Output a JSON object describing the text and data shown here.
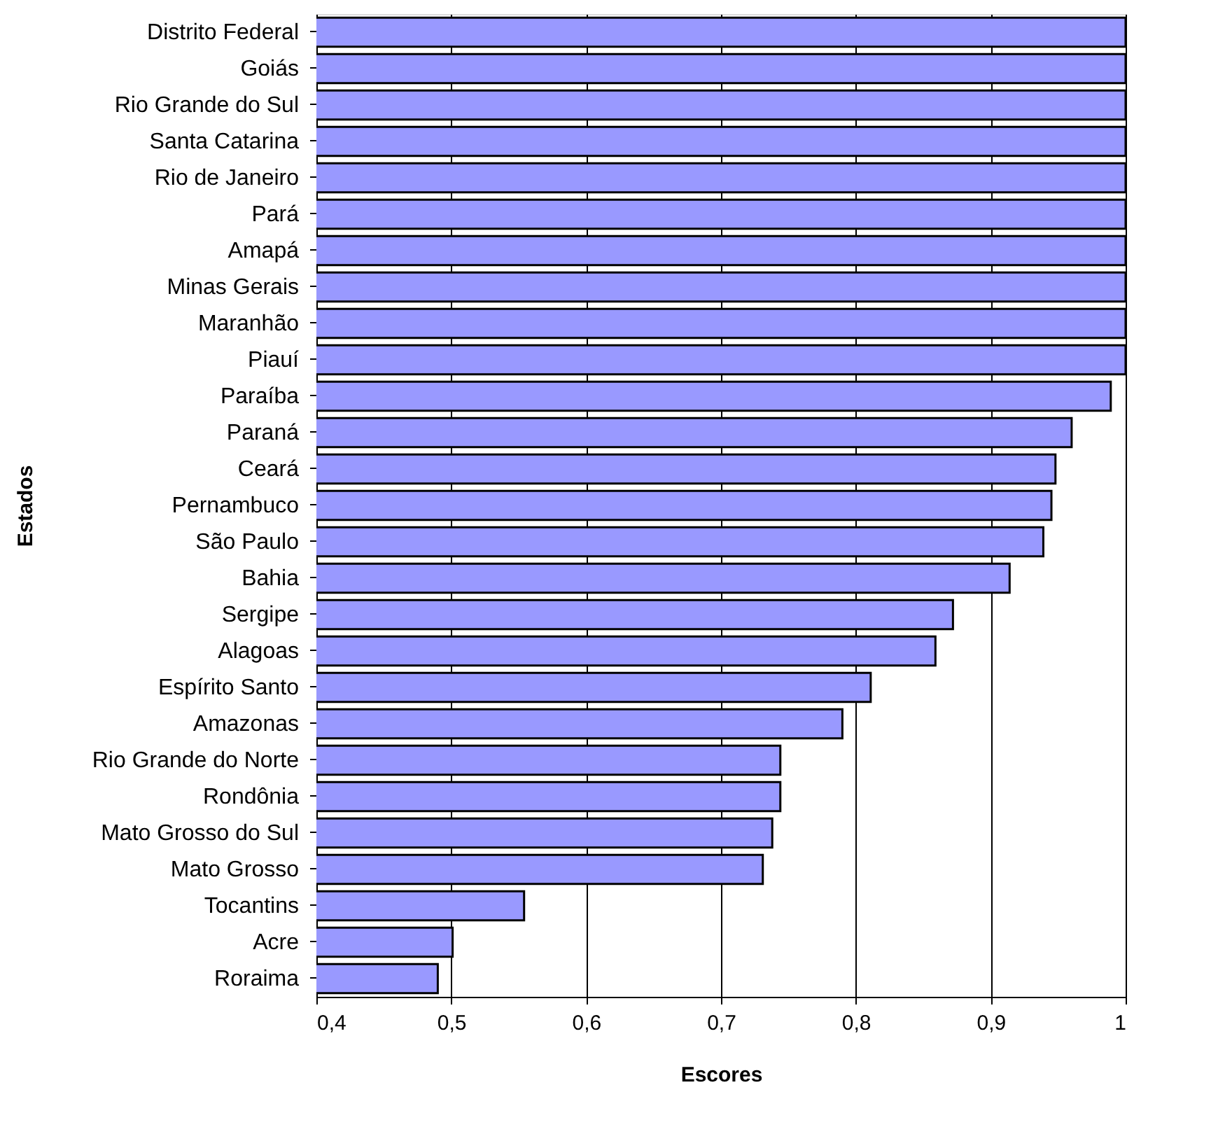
{
  "chart_data": {
    "type": "bar",
    "orientation": "horizontal",
    "xlabel": "Escores",
    "ylabel": "Estados",
    "categories": [
      "Distrito Federal",
      "Goiás",
      "Rio Grande do Sul",
      "Santa Catarina",
      "Rio de Janeiro",
      "Pará",
      "Amapá",
      "Minas Gerais",
      "Maranhão",
      "Piauí",
      "Paraíba",
      "Paraná",
      "Ceará",
      "Pernambuco",
      "São Paulo",
      "Bahia",
      "Sergipe",
      "Alagoas",
      "Espírito Santo",
      "Amazonas",
      "Rio Grande do Norte",
      "Rondônia",
      "Mato Grosso do Sul",
      "Mato Grosso ",
      "Tocantins",
      "Acre",
      "Roraima"
    ],
    "values": [
      1,
      1,
      1,
      1,
      1,
      1,
      1,
      1,
      1,
      1,
      0.989,
      0.96,
      0.948,
      0.945,
      0.939,
      0.914,
      0.872,
      0.859,
      0.811,
      0.79,
      0.744,
      0.744,
      0.738,
      0.731,
      0.554,
      0.501,
      0.49
    ],
    "color": "#9999ff",
    "xlim": [
      0.4,
      1
    ],
    "xticks": [
      {
        "value": 0.4,
        "label": "0,4"
      },
      {
        "value": 0.5,
        "label": "0,5"
      },
      {
        "value": 0.6,
        "label": "0,6"
      },
      {
        "value": 0.7,
        "label": "0,7"
      },
      {
        "value": 0.8,
        "label": "0,8"
      },
      {
        "value": 0.9,
        "label": "0,9"
      },
      1
    ],
    "grid": "x"
  }
}
